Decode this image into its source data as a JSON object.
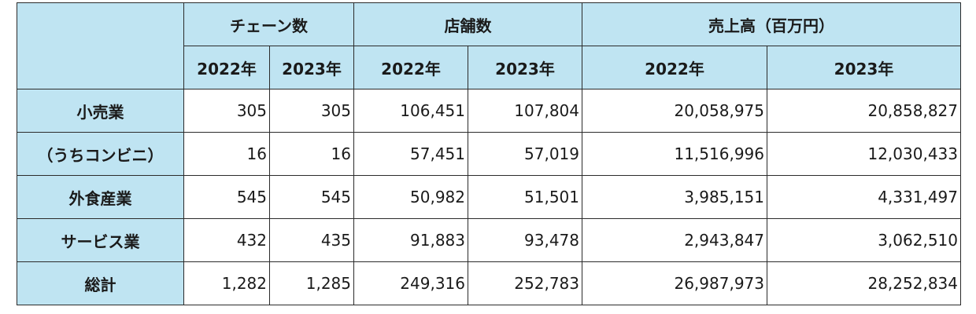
{
  "header": {
    "corner": "",
    "groups": [
      "チェーン数",
      "店舗数",
      "売上高（百万円）"
    ],
    "years": [
      "2022年",
      "2023年",
      "2022年",
      "2023年",
      "2022年",
      "2023年"
    ]
  },
  "rows": [
    {
      "label": "小売業",
      "values": [
        "305",
        "305",
        "106,451",
        "107,804",
        "20,058,975",
        "20,858,827"
      ]
    },
    {
      "label": "（うちコンビニ）",
      "values": [
        "16",
        "16",
        "57,451",
        "57,019",
        "11,516,996",
        "12,030,433"
      ]
    },
    {
      "label": "外食産業",
      "values": [
        "545",
        "545",
        "50,982",
        "51,501",
        "3,985,151",
        "4,331,497"
      ]
    },
    {
      "label": "サービス業",
      "values": [
        "432",
        "435",
        "91,883",
        "93,478",
        "2,943,847",
        "3,062,510"
      ]
    },
    {
      "label": "総計",
      "values": [
        "1,282",
        "1,285",
        "249,316",
        "252,783",
        "26,987,973",
        "28,252,834"
      ]
    }
  ]
}
